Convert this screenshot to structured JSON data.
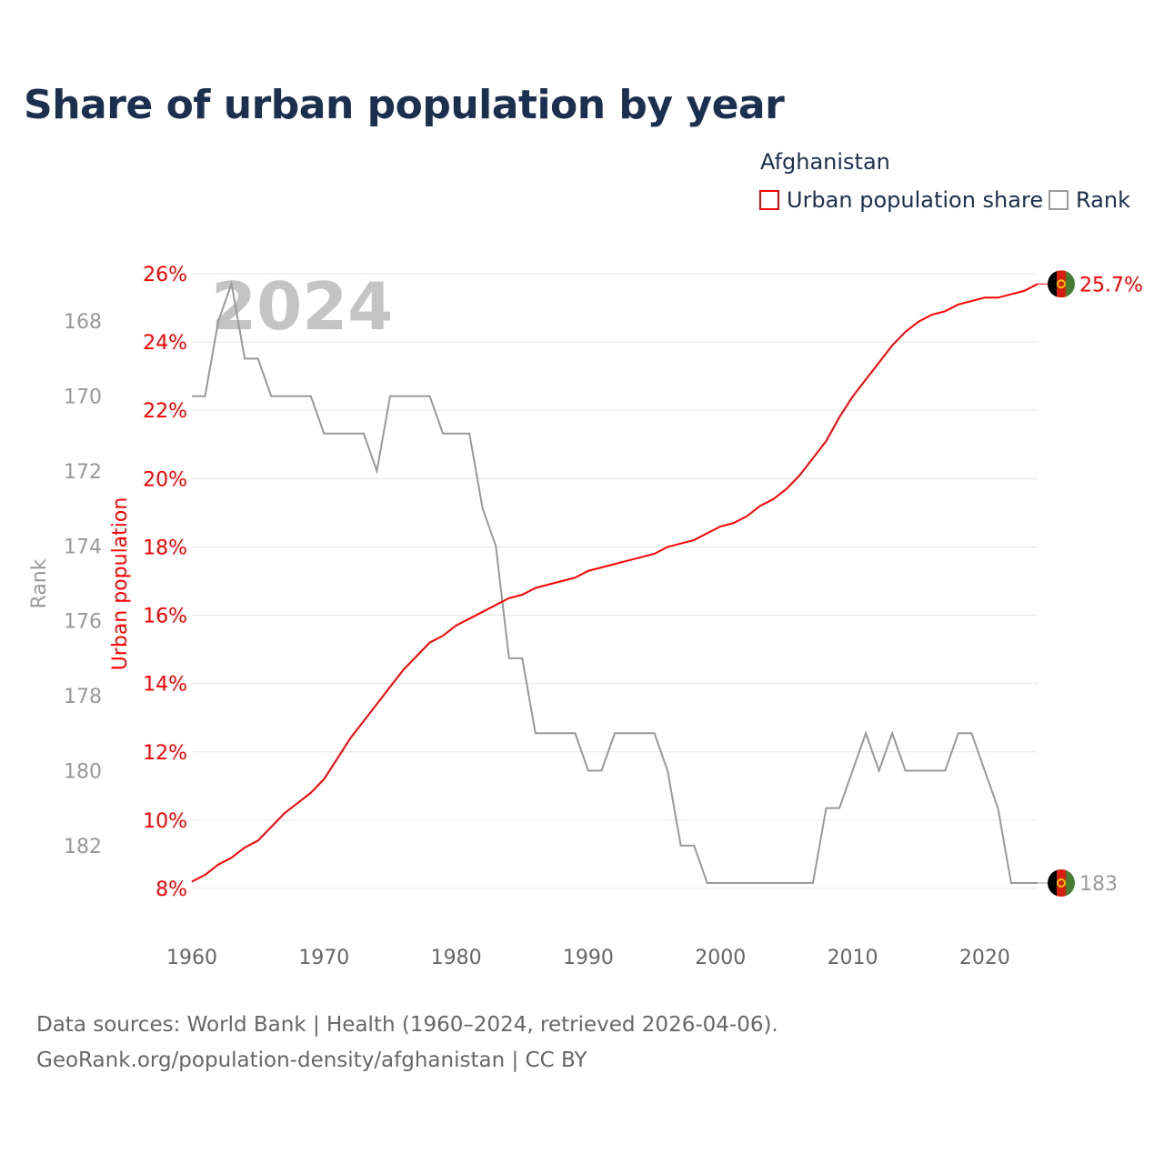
{
  "title": "Share of urban population by year",
  "legend": {
    "country": "Afghanistan",
    "items": [
      {
        "label": "Urban population share",
        "color": "#ff0000"
      },
      {
        "label": "Rank",
        "color": "#999999"
      }
    ]
  },
  "footer": {
    "line1": "Data sources: World Bank | Health (1960–2024, retrieved 2026-04-06).",
    "line2": "GeoRank.org/population-density/afghanistan | CC BY"
  },
  "chart_data": {
    "type": "line",
    "title": "Share of urban population by year",
    "watermark_year": "2024",
    "xlabel": "",
    "ylabel_left": "Rank",
    "ylabel_right": "Urban population",
    "x_ticks": [
      1960,
      1970,
      1980,
      1990,
      2000,
      2010,
      2020
    ],
    "xlim": [
      1960,
      2024
    ],
    "urban_ticks": [
      "8%",
      "10%",
      "12%",
      "14%",
      "16%",
      "18%",
      "20%",
      "22%",
      "24%",
      "26%"
    ],
    "urban_ylim": [
      8,
      26
    ],
    "rank_ticks": [
      168,
      170,
      172,
      174,
      176,
      178,
      180,
      182
    ],
    "rank_ylim": [
      167,
      183
    ],
    "grid": true,
    "x": [
      1960,
      1961,
      1962,
      1963,
      1964,
      1965,
      1966,
      1967,
      1968,
      1969,
      1970,
      1971,
      1972,
      1973,
      1974,
      1975,
      1976,
      1977,
      1978,
      1979,
      1980,
      1981,
      1982,
      1983,
      1984,
      1985,
      1986,
      1987,
      1988,
      1989,
      1990,
      1991,
      1992,
      1993,
      1994,
      1995,
      1996,
      1997,
      1998,
      1999,
      2000,
      2001,
      2002,
      2003,
      2004,
      2005,
      2006,
      2007,
      2008,
      2009,
      2010,
      2011,
      2012,
      2013,
      2014,
      2015,
      2016,
      2017,
      2018,
      2019,
      2020,
      2021,
      2022,
      2023,
      2024
    ],
    "series": [
      {
        "name": "Urban population share",
        "color": "#ff0000",
        "end_label": "25.7%",
        "values": [
          8.2,
          8.4,
          8.7,
          8.9,
          9.2,
          9.4,
          9.8,
          10.2,
          10.5,
          10.8,
          11.2,
          11.8,
          12.4,
          12.9,
          13.4,
          13.9,
          14.4,
          14.8,
          15.2,
          15.4,
          15.7,
          15.9,
          16.1,
          16.3,
          16.5,
          16.6,
          16.8,
          16.9,
          17.0,
          17.1,
          17.3,
          17.4,
          17.5,
          17.6,
          17.7,
          17.8,
          18.0,
          18.1,
          18.2,
          18.4,
          18.6,
          18.7,
          18.9,
          19.2,
          19.4,
          19.7,
          20.1,
          20.6,
          21.1,
          21.8,
          22.4,
          22.9,
          23.4,
          23.9,
          24.3,
          24.6,
          24.8,
          24.9,
          25.1,
          25.2,
          25.3,
          25.3,
          25.4,
          25.5,
          25.7
        ]
      },
      {
        "name": "Rank",
        "color": "#999999",
        "end_label": "183",
        "values": [
          170,
          170,
          168,
          167,
          169,
          169,
          170,
          170,
          170,
          170,
          171,
          171,
          171,
          171,
          172,
          170,
          170,
          170,
          170,
          171,
          171,
          171,
          173,
          174,
          177,
          177,
          179,
          179,
          179,
          179,
          180,
          180,
          179,
          179,
          179,
          179,
          180,
          182,
          182,
          183,
          183,
          183,
          183,
          183,
          183,
          183,
          183,
          183,
          181,
          181,
          180,
          179,
          180,
          179,
          180,
          180,
          180,
          180,
          179,
          179,
          180,
          181,
          183,
          183,
          183
        ]
      }
    ]
  }
}
